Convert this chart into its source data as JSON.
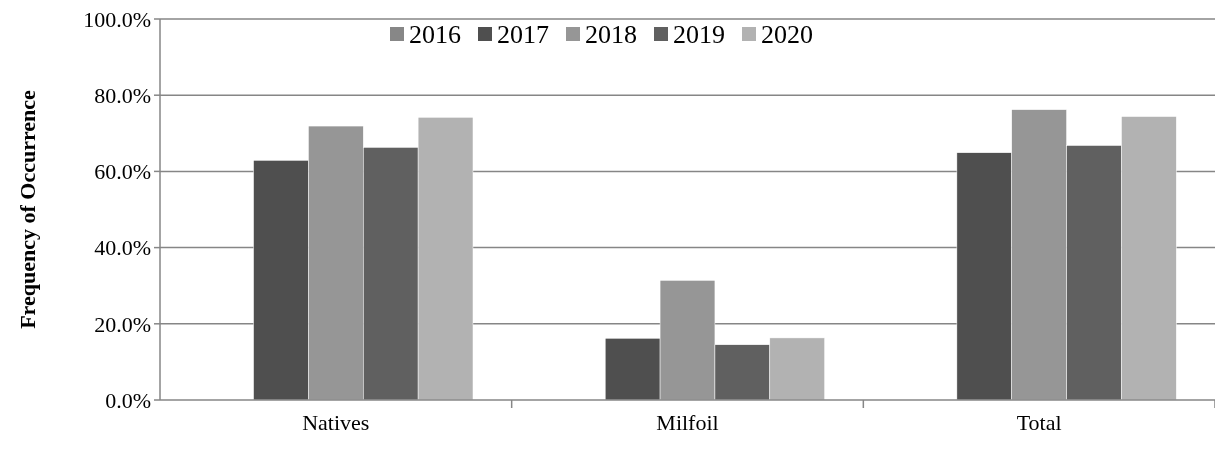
{
  "chart_data": {
    "type": "bar",
    "ylabel": "Frequency of Occurrence",
    "categories": [
      "Natives",
      "Milfoil",
      "Total"
    ],
    "series": [
      {
        "name": "2016",
        "color": "#878787",
        "values": [
          null,
          null,
          null
        ]
      },
      {
        "name": "2017",
        "color": "#4f4f4f",
        "values": [
          62.9,
          16.2,
          64.9
        ]
      },
      {
        "name": "2018",
        "color": "#969696",
        "values": [
          71.9,
          31.4,
          76.2
        ]
      },
      {
        "name": "2019",
        "color": "#606060",
        "values": [
          66.3,
          14.5,
          66.8
        ]
      },
      {
        "name": "2020",
        "color": "#b2b2b2",
        "values": [
          74.2,
          16.3,
          74.4
        ]
      }
    ],
    "ylim": [
      0,
      100
    ],
    "yticks": [
      {
        "value": 0,
        "label": "0.0%"
      },
      {
        "value": 20,
        "label": "20.0%"
      },
      {
        "value": 40,
        "label": "40.0%"
      },
      {
        "value": 60,
        "label": "60.0%"
      },
      {
        "value": 80,
        "label": "80.0%"
      },
      {
        "value": 100,
        "label": "100.0%"
      }
    ],
    "grid": "y",
    "legend": "top"
  }
}
